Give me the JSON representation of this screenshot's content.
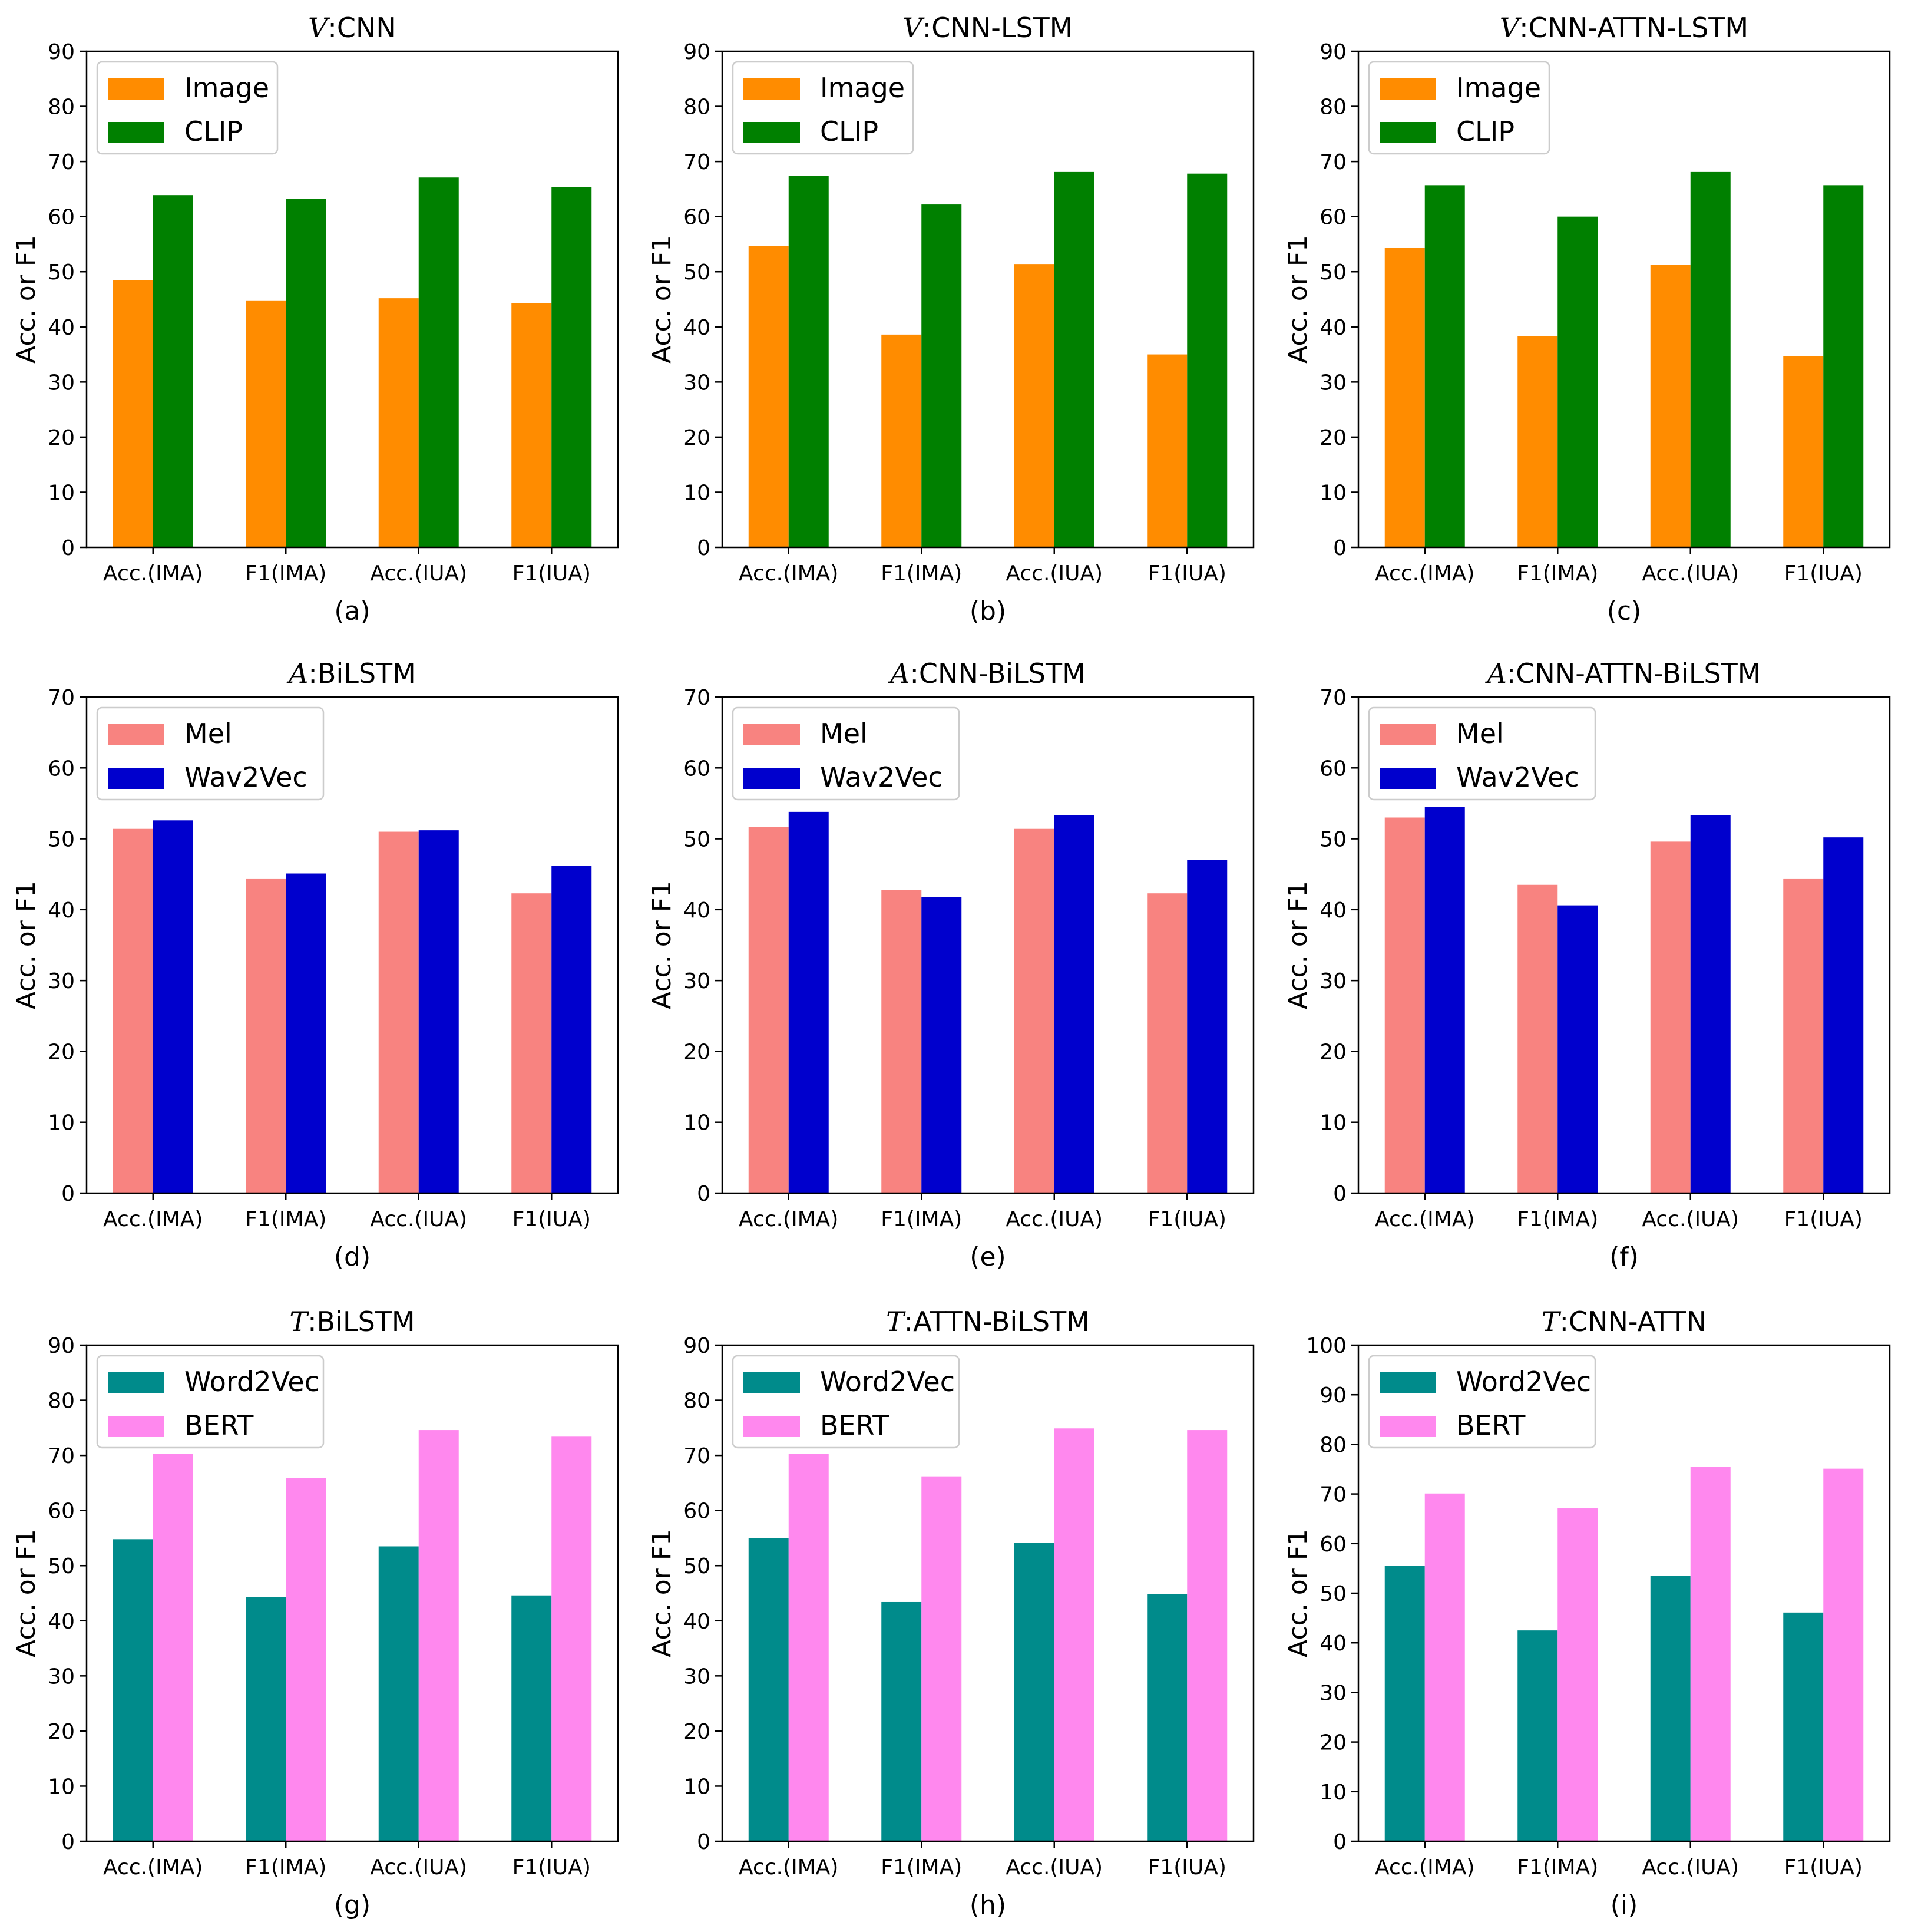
{
  "figure": {
    "name": "multimodal-feature-comparison"
  },
  "chart_data": [
    {
      "type": "bar",
      "panel_label": "(a)",
      "title_prefix": "V",
      "title_suffix": ":CNN",
      "ylabel": "Acc. or F1",
      "ylim": [
        0,
        90
      ],
      "yticks": [
        0,
        10,
        20,
        30,
        40,
        50,
        60,
        70,
        80,
        90
      ],
      "categories": [
        "Acc.(IMA)",
        "F1(IMA)",
        "Acc.(IUA)",
        "F1(IUA)"
      ],
      "series": [
        {
          "name": "Image",
          "color": "#ff8c00",
          "values": [
            48.5,
            44.7,
            45.2,
            44.3
          ]
        },
        {
          "name": "CLIP",
          "color": "#008000",
          "values": [
            63.9,
            63.2,
            67.1,
            65.4
          ]
        }
      ],
      "legend": "top-left",
      "grid": false
    },
    {
      "type": "bar",
      "panel_label": "(b)",
      "title_prefix": "V",
      "title_suffix": ":CNN-LSTM",
      "ylabel": "Acc. or F1",
      "ylim": [
        0,
        90
      ],
      "yticks": [
        0,
        10,
        20,
        30,
        40,
        50,
        60,
        70,
        80,
        90
      ],
      "categories": [
        "Acc.(IMA)",
        "F1(IMA)",
        "Acc.(IUA)",
        "F1(IUA)"
      ],
      "series": [
        {
          "name": "Image",
          "color": "#ff8c00",
          "values": [
            54.7,
            38.6,
            51.4,
            35.0
          ]
        },
        {
          "name": "CLIP",
          "color": "#008000",
          "values": [
            67.4,
            62.2,
            68.1,
            67.8
          ]
        }
      ],
      "legend": "top-left",
      "grid": false
    },
    {
      "type": "bar",
      "panel_label": "(c)",
      "title_prefix": "V",
      "title_suffix": ":CNN-ATTN-LSTM",
      "ylabel": "Acc. or F1",
      "ylim": [
        0,
        90
      ],
      "yticks": [
        0,
        10,
        20,
        30,
        40,
        50,
        60,
        70,
        80,
        90
      ],
      "categories": [
        "Acc.(IMA)",
        "F1(IMA)",
        "Acc.(IUA)",
        "F1(IUA)"
      ],
      "series": [
        {
          "name": "Image",
          "color": "#ff8c00",
          "values": [
            54.3,
            38.3,
            51.3,
            34.7
          ]
        },
        {
          "name": "CLIP",
          "color": "#008000",
          "values": [
            65.7,
            60.0,
            68.1,
            65.7
          ]
        }
      ],
      "legend": "top-left",
      "grid": false
    },
    {
      "type": "bar",
      "panel_label": "(d)",
      "title_prefix": "A",
      "title_suffix": ":BiLSTM",
      "ylabel": "Acc. or F1",
      "ylim": [
        0,
        70
      ],
      "yticks": [
        0,
        10,
        20,
        30,
        40,
        50,
        60,
        70
      ],
      "categories": [
        "Acc.(IMA)",
        "F1(IMA)",
        "Acc.(IUA)",
        "F1(IUA)"
      ],
      "series": [
        {
          "name": "Mel",
          "color": "#f88380",
          "values": [
            51.4,
            44.4,
            51.0,
            42.3
          ]
        },
        {
          "name": "Wav2Vec",
          "color": "#0000cd",
          "values": [
            52.6,
            45.1,
            51.2,
            46.2
          ]
        }
      ],
      "legend": "top-left",
      "grid": false
    },
    {
      "type": "bar",
      "panel_label": "(e)",
      "title_prefix": "A",
      "title_suffix": ":CNN-BiLSTM",
      "ylabel": "Acc. or F1",
      "ylim": [
        0,
        70
      ],
      "yticks": [
        0,
        10,
        20,
        30,
        40,
        50,
        60,
        70
      ],
      "categories": [
        "Acc.(IMA)",
        "F1(IMA)",
        "Acc.(IUA)",
        "F1(IUA)"
      ],
      "series": [
        {
          "name": "Mel",
          "color": "#f88380",
          "values": [
            51.7,
            42.8,
            51.4,
            42.3
          ]
        },
        {
          "name": "Wav2Vec",
          "color": "#0000cd",
          "values": [
            53.8,
            41.8,
            53.3,
            47.0
          ]
        }
      ],
      "legend": "top-left",
      "grid": false
    },
    {
      "type": "bar",
      "panel_label": "(f)",
      "title_prefix": "A",
      "title_suffix": ":CNN-ATTN-BiLSTM",
      "ylabel": "Acc. or F1",
      "ylim": [
        0,
        70
      ],
      "yticks": [
        0,
        10,
        20,
        30,
        40,
        50,
        60,
        70
      ],
      "categories": [
        "Acc.(IMA)",
        "F1(IMA)",
        "Acc.(IUA)",
        "F1(IUA)"
      ],
      "series": [
        {
          "name": "Mel",
          "color": "#f88380",
          "values": [
            53.0,
            43.5,
            49.6,
            44.4
          ]
        },
        {
          "name": "Wav2Vec",
          "color": "#0000cd",
          "values": [
            54.5,
            40.6,
            53.3,
            50.2
          ]
        }
      ],
      "legend": "top-left",
      "grid": false
    },
    {
      "type": "bar",
      "panel_label": "(g)",
      "title_prefix": "T",
      "title_suffix": ":BiLSTM",
      "ylabel": "Acc. or F1",
      "ylim": [
        0,
        90
      ],
      "yticks": [
        0,
        10,
        20,
        30,
        40,
        50,
        60,
        70,
        80,
        90
      ],
      "categories": [
        "Acc.(IMA)",
        "F1(IMA)",
        "Acc.(IUA)",
        "F1(IUA)"
      ],
      "series": [
        {
          "name": "Word2Vec",
          "color": "#008b8b",
          "values": [
            54.8,
            44.3,
            53.5,
            44.6
          ]
        },
        {
          "name": "BERT",
          "color": "#ff88ee",
          "values": [
            70.3,
            65.9,
            74.6,
            73.4
          ]
        }
      ],
      "legend": "top-left",
      "grid": false
    },
    {
      "type": "bar",
      "panel_label": "(h)",
      "title_prefix": "T",
      "title_suffix": ":ATTN-BiLSTM",
      "ylabel": "Acc. or F1",
      "ylim": [
        0,
        90
      ],
      "yticks": [
        0,
        10,
        20,
        30,
        40,
        50,
        60,
        70,
        80,
        90
      ],
      "categories": [
        "Acc.(IMA)",
        "F1(IMA)",
        "Acc.(IUA)",
        "F1(IUA)"
      ],
      "series": [
        {
          "name": "Word2Vec",
          "color": "#008b8b",
          "values": [
            55.0,
            43.4,
            54.1,
            44.8
          ]
        },
        {
          "name": "BERT",
          "color": "#ff88ee",
          "values": [
            70.3,
            66.2,
            74.9,
            74.6
          ]
        }
      ],
      "legend": "top-left",
      "grid": false
    },
    {
      "type": "bar",
      "panel_label": "(i)",
      "title_prefix": "T",
      "title_suffix": ":CNN-ATTN",
      "ylabel": "Acc. or F1",
      "ylim": [
        0,
        100
      ],
      "yticks": [
        0,
        10,
        20,
        30,
        40,
        50,
        60,
        70,
        80,
        90,
        100
      ],
      "categories": [
        "Acc.(IMA)",
        "F1(IMA)",
        "Acc.(IUA)",
        "F1(IUA)"
      ],
      "series": [
        {
          "name": "Word2Vec",
          "color": "#008b8b",
          "values": [
            55.5,
            42.5,
            53.5,
            46.1
          ]
        },
        {
          "name": "BERT",
          "color": "#ff88ee",
          "values": [
            70.1,
            67.1,
            75.5,
            75.1
          ]
        }
      ],
      "legend": "top-left",
      "grid": false
    }
  ]
}
